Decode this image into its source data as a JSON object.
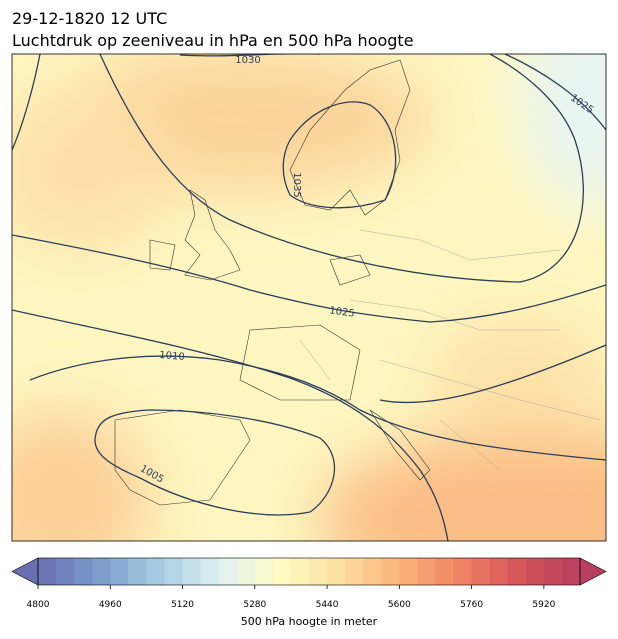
{
  "header": {
    "title": "29-12-1820 12 UTC",
    "subtitle": "Luchtdruk op zeeniveau in hPa en 500 hPa hoogte"
  },
  "map": {
    "contour_labels": [
      1030,
      1035,
      1025,
      1025,
      1010,
      1005
    ]
  },
  "colorbar": {
    "label": "500 hPa hoogte in meter",
    "lim": [
      4800,
      6000
    ],
    "ticks": [
      4800,
      4960,
      5120,
      5280,
      5440,
      5600,
      5760,
      5920
    ],
    "bins": 30,
    "colors": [
      "#6a6fb0",
      "#7b9ccc",
      "#a6cde2",
      "#dff0f2",
      "#fefbc4",
      "#fde0a0",
      "#fbb478",
      "#ef8463",
      "#d5545a",
      "#b8405e"
    ]
  }
}
